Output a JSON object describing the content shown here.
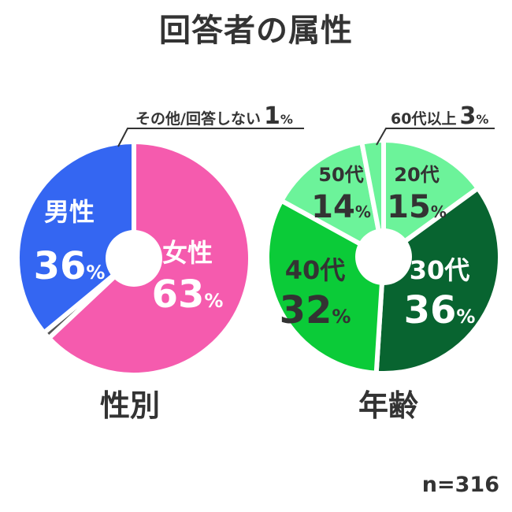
{
  "title": "回答者の属性",
  "sample_size": "n=316",
  "chart_data": [
    {
      "type": "pie",
      "title": "性別",
      "unit": "%",
      "slices": [
        {
          "name": "女性",
          "value": 63,
          "color": "#F55BAE"
        },
        {
          "name": "その他/回答しない",
          "value": 1,
          "color": "#555555"
        },
        {
          "name": "男性",
          "value": 36,
          "color": "#3466F2"
        }
      ]
    },
    {
      "type": "pie",
      "title": "年齢",
      "unit": "%",
      "slices": [
        {
          "name": "20代",
          "value": 15,
          "color": "#6CF39A"
        },
        {
          "name": "30代",
          "value": 36,
          "color": "#086430"
        },
        {
          "name": "40代",
          "value": 32,
          "color": "#0BCB38"
        },
        {
          "name": "50代",
          "value": 14,
          "color": "#6CF39A"
        },
        {
          "name": "60代以上",
          "value": 3,
          "color": "#6CF39A"
        }
      ]
    }
  ]
}
